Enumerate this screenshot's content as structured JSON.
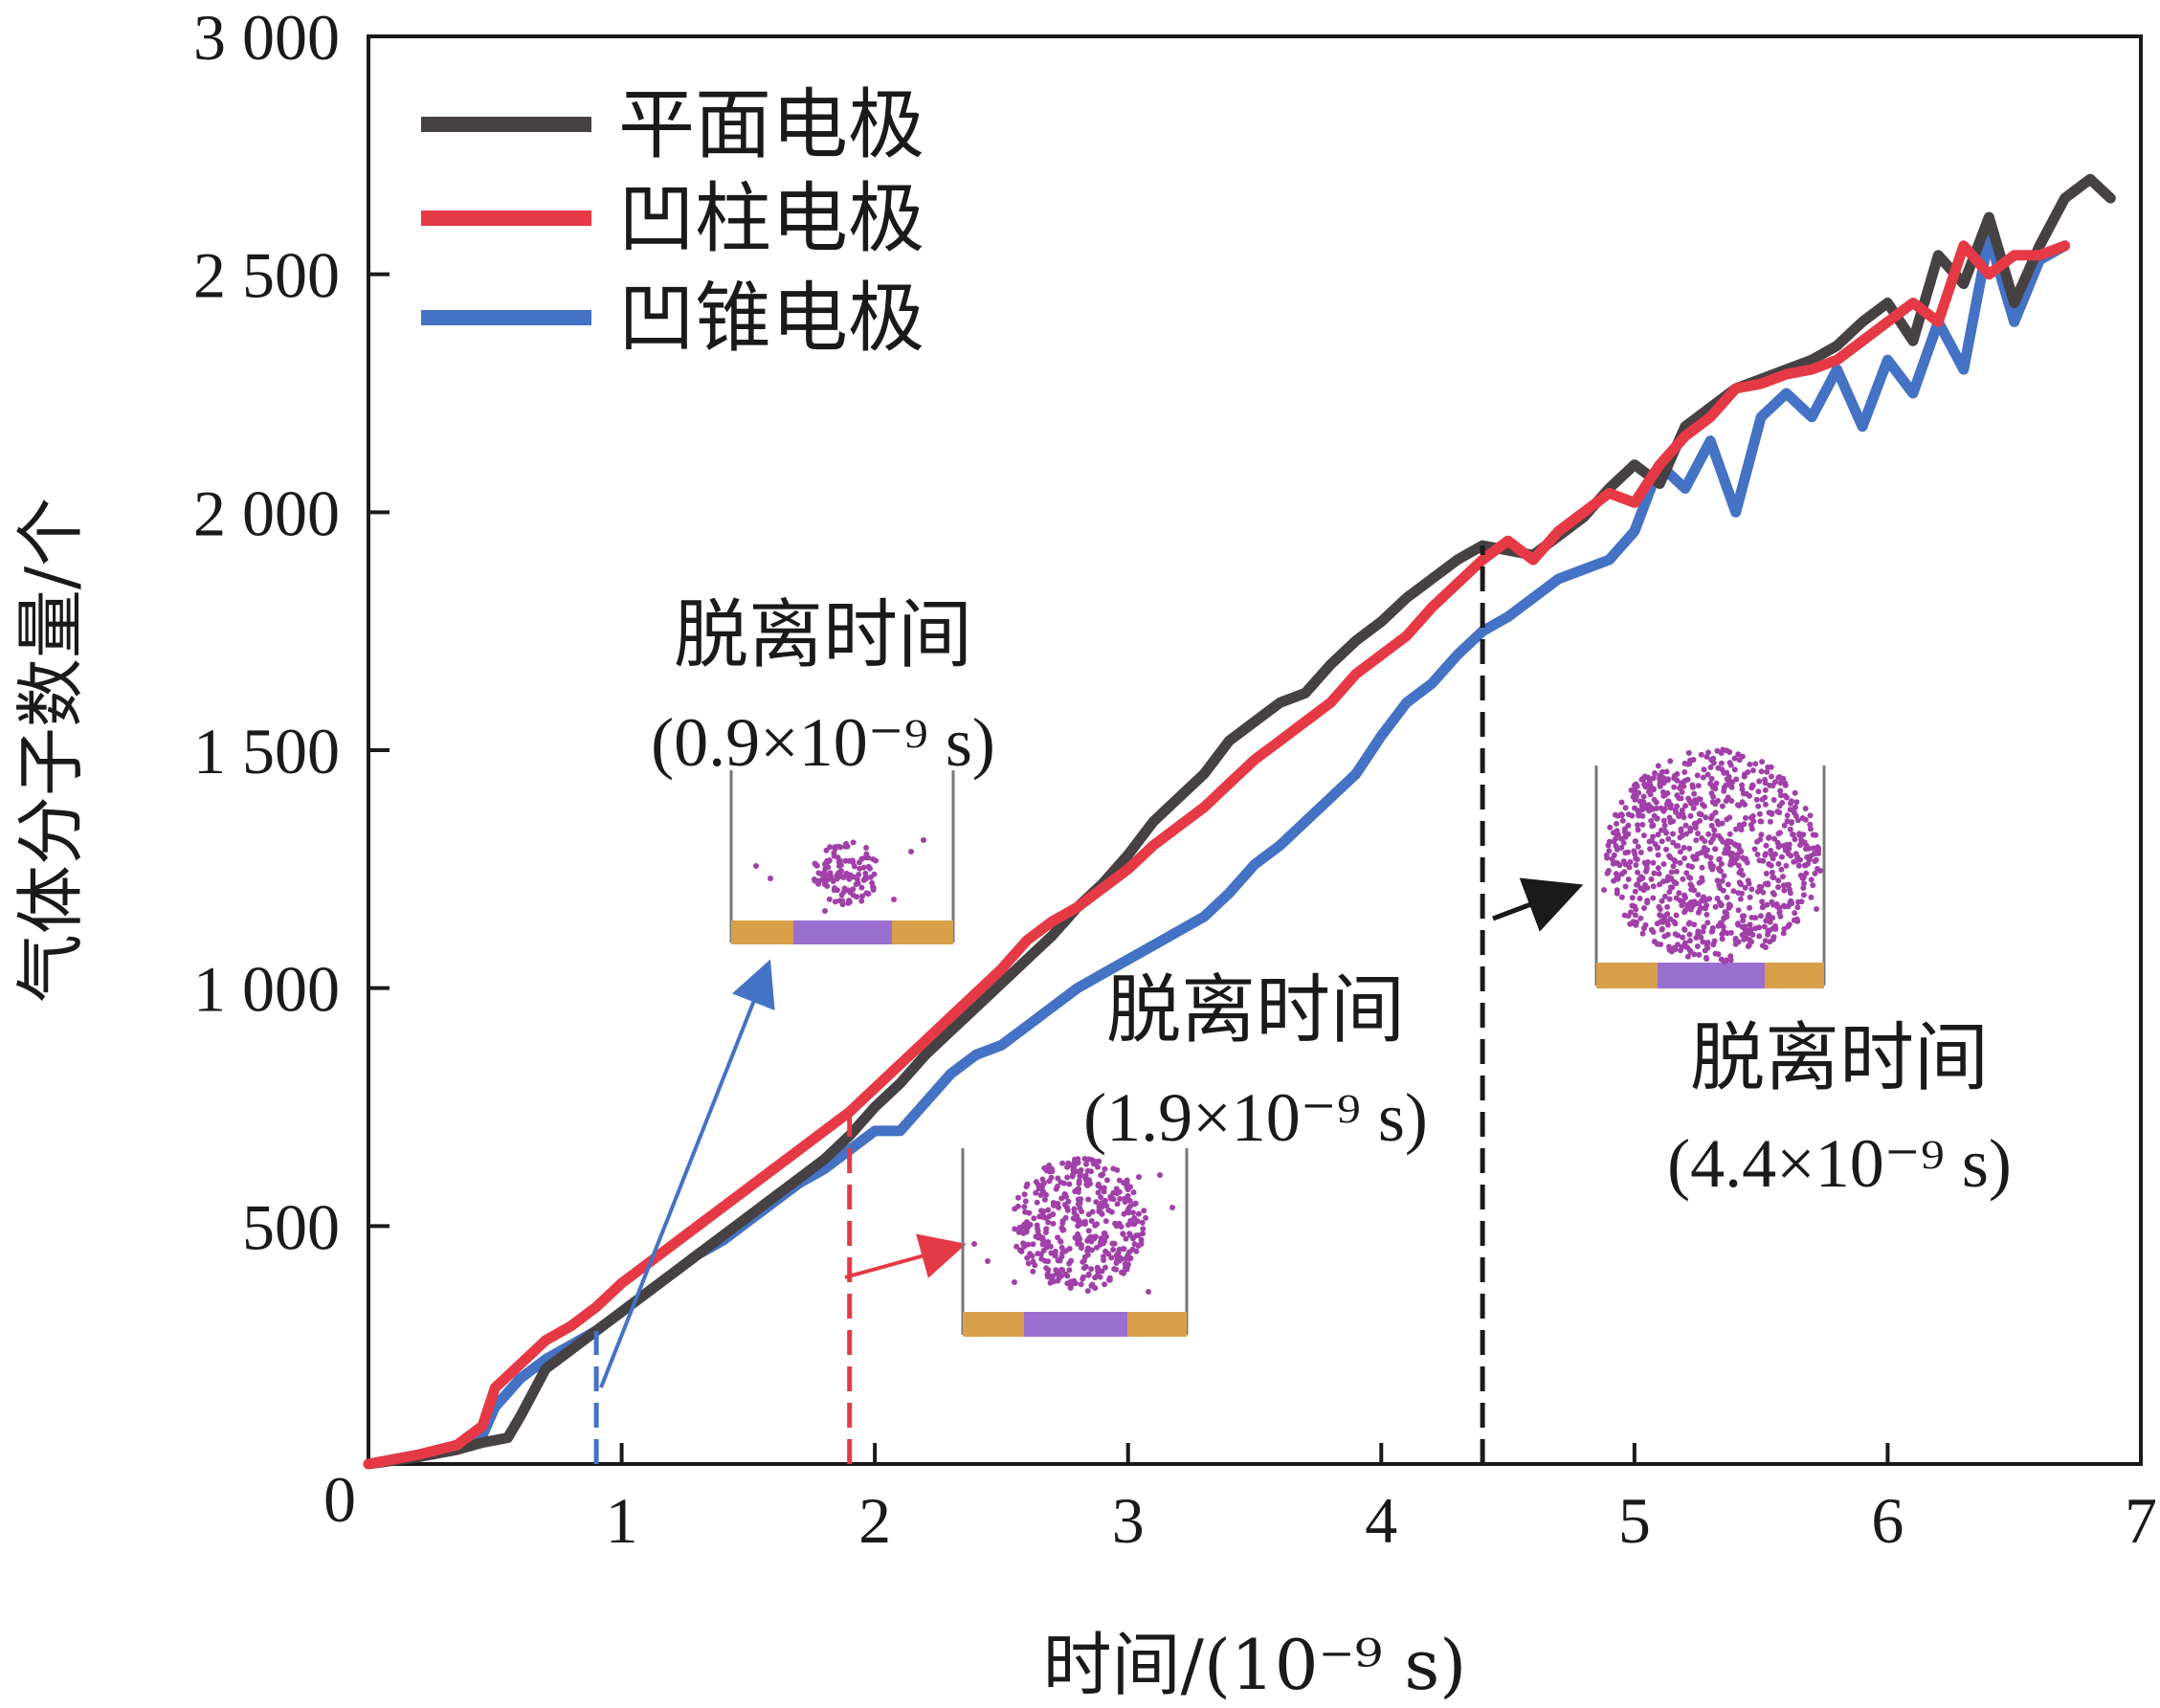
{
  "chart_data": {
    "type": "line",
    "xlabel": "时间/(10⁻⁹ s)",
    "ylabel": "气体分子数量/个",
    "xlim": [
      0,
      7
    ],
    "ylim": [
      0,
      3000
    ],
    "x_ticks": [
      0,
      1,
      2,
      3,
      4,
      5,
      6,
      7
    ],
    "x_tick_labels": [
      "0",
      "1",
      "2",
      "3",
      "4",
      "5",
      "6",
      "7"
    ],
    "y_ticks": [
      500,
      1000,
      1500,
      2000,
      2500,
      3000
    ],
    "y_tick_labels": [
      "500",
      "1 000",
      "1 500",
      "2 000",
      "2 500",
      "3 000"
    ],
    "legend_position": "top-left",
    "series": [
      {
        "name": "平面电极",
        "color": "#464143",
        "x": [
          0,
          0.2,
          0.35,
          0.45,
          0.55,
          0.6,
          0.7,
          0.8,
          0.9,
          1.0,
          1.1,
          1.2,
          1.3,
          1.4,
          1.5,
          1.6,
          1.7,
          1.8,
          1.9,
          2.0,
          2.1,
          2.2,
          2.3,
          2.4,
          2.5,
          2.6,
          2.7,
          2.8,
          2.9,
          3.0,
          3.1,
          3.2,
          3.3,
          3.4,
          3.5,
          3.6,
          3.7,
          3.8,
          3.9,
          4.0,
          4.1,
          4.2,
          4.3,
          4.4,
          4.5,
          4.6,
          4.7,
          4.8,
          4.9,
          5.0,
          5.1,
          5.2,
          5.3,
          5.4,
          5.5,
          5.6,
          5.7,
          5.8,
          5.9,
          6.0,
          6.1,
          6.2,
          6.3,
          6.4,
          6.5,
          6.6,
          6.7,
          6.8,
          6.88
        ],
        "y": [
          0,
          15,
          30,
          45,
          55,
          100,
          200,
          240,
          280,
          320,
          360,
          400,
          440,
          480,
          520,
          560,
          600,
          640,
          690,
          750,
          800,
          860,
          910,
          960,
          1010,
          1060,
          1110,
          1170,
          1220,
          1280,
          1350,
          1400,
          1450,
          1520,
          1560,
          1600,
          1620,
          1680,
          1730,
          1770,
          1820,
          1860,
          1900,
          1930,
          1920,
          1910,
          1950,
          1990,
          2050,
          2100,
          2060,
          2180,
          2220,
          2260,
          2280,
          2300,
          2320,
          2350,
          2400,
          2440,
          2360,
          2540,
          2480,
          2620,
          2440,
          2560,
          2660,
          2700,
          2660
        ]
      },
      {
        "name": "凹柱电极",
        "color": "#e63946",
        "x": [
          0,
          0.2,
          0.35,
          0.45,
          0.5,
          0.6,
          0.7,
          0.8,
          0.9,
          1.0,
          1.1,
          1.2,
          1.3,
          1.4,
          1.5,
          1.6,
          1.7,
          1.8,
          1.9,
          2.0,
          2.1,
          2.2,
          2.3,
          2.4,
          2.5,
          2.6,
          2.7,
          2.8,
          2.9,
          3.0,
          3.1,
          3.2,
          3.3,
          3.4,
          3.5,
          3.6,
          3.7,
          3.8,
          3.9,
          4.0,
          4.1,
          4.2,
          4.3,
          4.4,
          4.5,
          4.6,
          4.7,
          4.8,
          4.9,
          5.0,
          5.1,
          5.2,
          5.3,
          5.4,
          5.5,
          5.6,
          5.7,
          5.8,
          5.9,
          6.0,
          6.1,
          6.2,
          6.3,
          6.4,
          6.5,
          6.6,
          6.7
        ],
        "y": [
          0,
          20,
          40,
          80,
          160,
          210,
          260,
          290,
          330,
          380,
          420,
          460,
          500,
          540,
          580,
          620,
          660,
          700,
          740,
          790,
          840,
          890,
          940,
          990,
          1040,
          1100,
          1140,
          1170,
          1210,
          1250,
          1300,
          1340,
          1380,
          1430,
          1480,
          1520,
          1560,
          1600,
          1660,
          1700,
          1740,
          1800,
          1850,
          1900,
          1940,
          1900,
          1960,
          2000,
          2040,
          2020,
          2100,
          2160,
          2200,
          2260,
          2270,
          2290,
          2300,
          2320,
          2360,
          2400,
          2440,
          2400,
          2560,
          2500,
          2540,
          2540,
          2560
        ]
      },
      {
        "name": "凹锥电极",
        "color": "#4472c4",
        "x": [
          0,
          0.2,
          0.35,
          0.45,
          0.5,
          0.6,
          0.7,
          0.8,
          0.9,
          1.0,
          1.1,
          1.2,
          1.3,
          1.4,
          1.5,
          1.6,
          1.7,
          1.8,
          1.9,
          2.0,
          2.1,
          2.2,
          2.3,
          2.4,
          2.5,
          2.6,
          2.7,
          2.8,
          2.9,
          3.0,
          3.1,
          3.2,
          3.3,
          3.4,
          3.5,
          3.6,
          3.7,
          3.8,
          3.9,
          4.0,
          4.1,
          4.2,
          4.3,
          4.4,
          4.5,
          4.6,
          4.7,
          4.8,
          4.9,
          5.0,
          5.1,
          5.2,
          5.3,
          5.4,
          5.5,
          5.6,
          5.7,
          5.8,
          5.9,
          6.0,
          6.1,
          6.2,
          6.3,
          6.4,
          6.5,
          6.6,
          6.7
        ],
        "y": [
          0,
          20,
          35,
          60,
          120,
          180,
          220,
          250,
          280,
          320,
          360,
          400,
          440,
          470,
          510,
          550,
          590,
          620,
          660,
          700,
          700,
          760,
          820,
          860,
          880,
          920,
          960,
          1000,
          1030,
          1060,
          1090,
          1120,
          1150,
          1200,
          1260,
          1300,
          1350,
          1400,
          1450,
          1530,
          1600,
          1640,
          1700,
          1750,
          1780,
          1820,
          1860,
          1880,
          1900,
          1960,
          2100,
          2050,
          2150,
          2000,
          2200,
          2250,
          2200,
          2300,
          2180,
          2320,
          2250,
          2400,
          2300,
          2580,
          2400,
          2530,
          2560
        ]
      }
    ],
    "annotations": [
      {
        "name": "blue",
        "x": 0.9,
        "label": "脱离时间",
        "time_text": "(0.9×10⁻⁹ s)",
        "color": "#4472c4"
      },
      {
        "name": "red",
        "x": 1.9,
        "label": "脱离时间",
        "time_text": "(1.9×10⁻⁹ s)",
        "color": "#e63946"
      },
      {
        "name": "black",
        "x": 4.4,
        "label": "脱离时间",
        "time_text": "(4.4×10⁻⁹ s)",
        "color": "#1a1a1a"
      }
    ]
  }
}
